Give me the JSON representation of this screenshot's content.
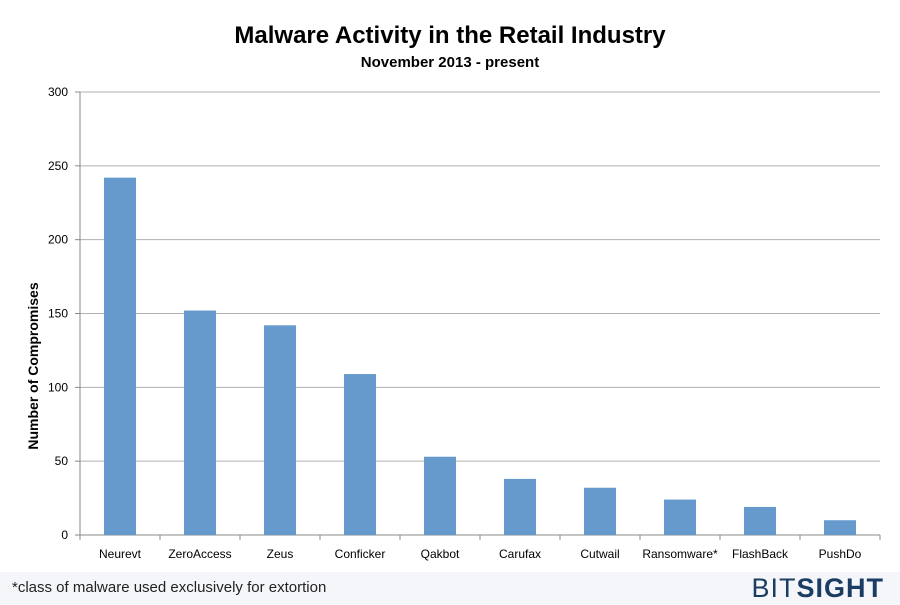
{
  "chart_data": {
    "type": "bar",
    "title": "Malware Activity in the Retail Industry",
    "subtitle": "November 2013 - present",
    "ylabel": "Number of Compromises",
    "xlabel": "",
    "ylim": [
      0,
      300
    ],
    "yticks": [
      0,
      50,
      100,
      150,
      200,
      250,
      300
    ],
    "grid": true,
    "legend": "none",
    "categories": [
      "Neurevt",
      "ZeroAccess",
      "Zeus",
      "Conficker",
      "Qakbot",
      "Carufax",
      "Cutwail",
      "Ransomware*",
      "FlashBack",
      "PushDo"
    ],
    "values": [
      242,
      152,
      142,
      109,
      53,
      38,
      32,
      24,
      19,
      10
    ],
    "bar_color": "#6699cc"
  },
  "footer": {
    "footnote": "*class of malware used exclusively for extortion",
    "logo_part1": "BIT",
    "logo_part2": "SIGHT"
  }
}
